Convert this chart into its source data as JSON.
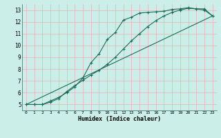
{
  "xlabel": "Humidex (Indice chaleur)",
  "bg_color": "#cceee8",
  "grid_color": "#e8b0b0",
  "line_color": "#1a6b5a",
  "xlim": [
    -0.5,
    23.5
  ],
  "ylim": [
    4.5,
    13.5
  ],
  "xticks": [
    0,
    1,
    2,
    3,
    4,
    5,
    6,
    7,
    8,
    9,
    10,
    11,
    12,
    13,
    14,
    15,
    16,
    17,
    18,
    19,
    20,
    21,
    22,
    23
  ],
  "yticks": [
    5,
    6,
    7,
    8,
    9,
    10,
    11,
    12,
    13
  ],
  "line1_x": [
    0,
    1,
    2,
    3,
    4,
    5,
    6,
    7,
    8,
    9,
    10,
    11,
    12,
    13,
    14,
    15,
    16,
    17,
    18,
    19,
    20,
    21,
    22,
    23
  ],
  "line1_y": [
    5.0,
    5.0,
    5.0,
    5.3,
    5.6,
    6.0,
    6.5,
    7.25,
    8.55,
    9.3,
    10.5,
    11.1,
    12.15,
    12.4,
    12.75,
    12.8,
    12.85,
    12.9,
    13.05,
    13.1,
    13.2,
    13.1,
    13.1,
    12.5
  ],
  "line2_x": [
    0,
    1,
    2,
    3,
    4,
    5,
    6,
    7,
    8,
    9,
    10,
    11,
    12,
    13,
    14,
    15,
    16,
    17,
    18,
    19,
    20,
    21,
    22,
    23
  ],
  "line2_y": [
    5.0,
    5.0,
    5.0,
    5.2,
    5.5,
    6.1,
    6.6,
    7.05,
    7.5,
    7.9,
    8.4,
    9.0,
    9.7,
    10.4,
    11.0,
    11.6,
    12.1,
    12.5,
    12.8,
    13.0,
    13.15,
    13.1,
    13.0,
    12.5
  ],
  "line3_x": [
    0,
    23
  ],
  "line3_y": [
    5.0,
    12.5
  ],
  "marker": "+",
  "markersize": 3,
  "linewidth": 0.8
}
